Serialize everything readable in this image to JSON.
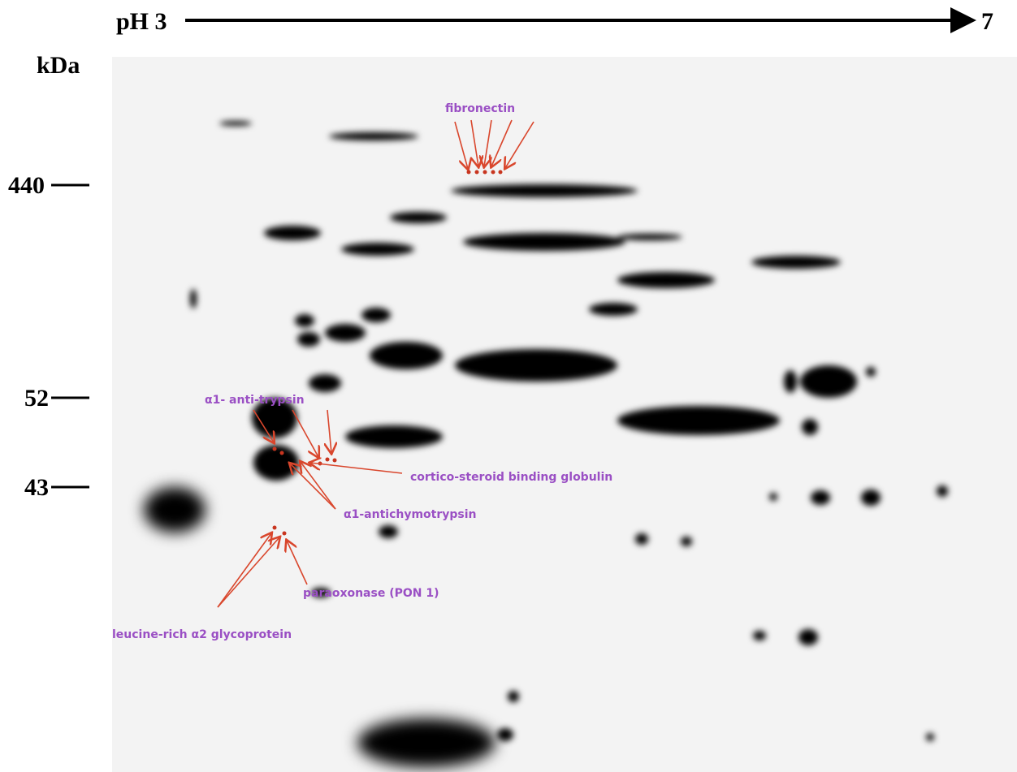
{
  "header": {
    "left": "pH 3",
    "right": "7"
  },
  "axis": {
    "unit": "kDa",
    "markers": [
      "440",
      "52",
      "43"
    ]
  },
  "annotations": [
    "fibronectin",
    "α1- anti-trypsin",
    "cortico-steroid binding globulin",
    "α1-antichymotrypsin",
    "paraoxonase (PON 1)",
    "leucine-rich α2 glycoprotein"
  ]
}
